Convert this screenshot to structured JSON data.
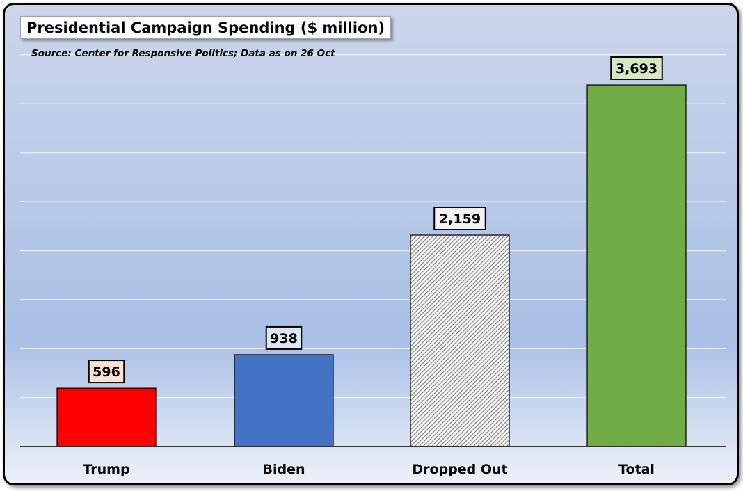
{
  "chart_data": {
    "type": "bar",
    "title": "Presidential Campaign Spending ($ million)",
    "subtitle": "Source: Center for Responsive Politics; Data as on 26 Oct",
    "categories": [
      "Trump",
      "Biden",
      "Dropped Out",
      "Total"
    ],
    "values": [
      596,
      938,
      2159,
      3693
    ],
    "value_labels": [
      "596",
      "938",
      "2,159",
      "3,693"
    ],
    "bar_colors": [
      "#ff0000",
      "#4472c4",
      "hatched-gray",
      "#70ad47"
    ],
    "label_box_colors": [
      "#fbe1d4",
      "#dde6f5",
      "#f2f2f2",
      "#d5e8c2"
    ],
    "ylim": [
      0,
      4000
    ],
    "grid": true,
    "legend": "none",
    "xlabel": "",
    "ylabel": ""
  }
}
